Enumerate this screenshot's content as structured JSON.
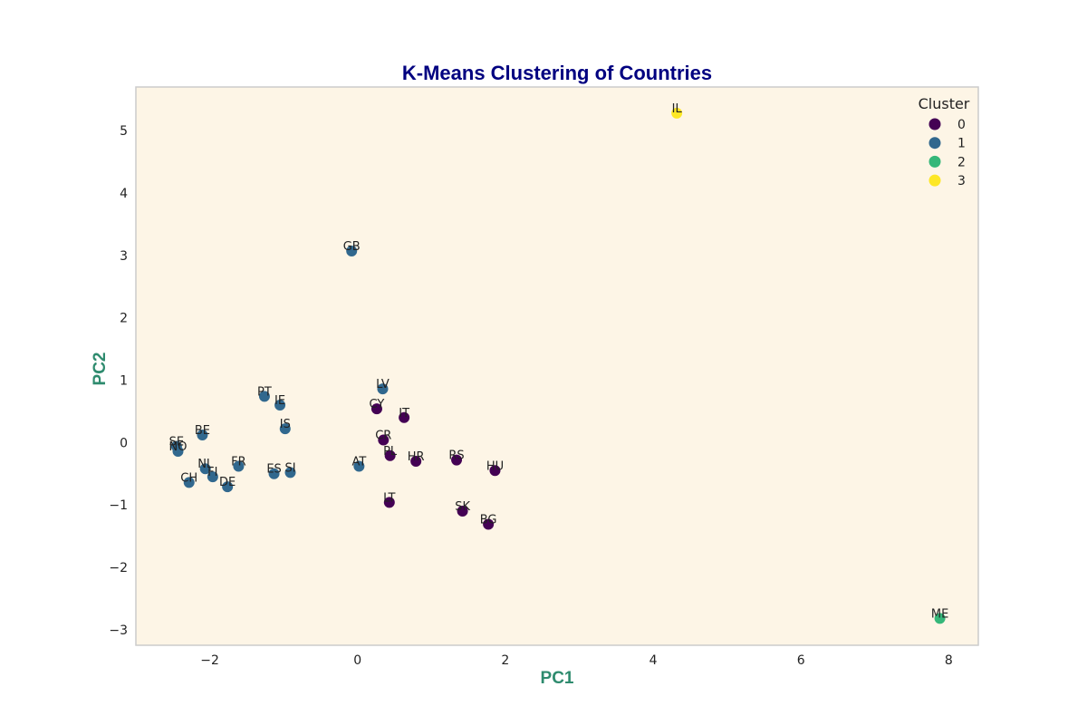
{
  "colors": {
    "plot_bg": "#fdf5e6",
    "frame": "#cccccc",
    "title": "#000080",
    "axis_label": "#2e8b6e",
    "cluster": [
      "#440154",
      "#31688e",
      "#35b779",
      "#fde725"
    ]
  },
  "chart_data": {
    "type": "scatter",
    "title": "K-Means Clustering of Countries",
    "xlabel": "PC1",
    "ylabel": "PC2",
    "xlim": [
      -3.0,
      8.4
    ],
    "ylim": [
      -3.25,
      5.7
    ],
    "xticks": [
      -2,
      0,
      2,
      4,
      6,
      8
    ],
    "yticks": [
      -3,
      -2,
      -1,
      0,
      1,
      2,
      3,
      4,
      5
    ],
    "grid": false,
    "legend": {
      "title": "Cluster",
      "placement": "top-right",
      "entries": [
        "0",
        "1",
        "2",
        "3"
      ]
    },
    "points": [
      {
        "label": "IL",
        "x": 4.32,
        "y": 5.28,
        "cluster": 3
      },
      {
        "label": "ME",
        "x": 7.88,
        "y": -2.82,
        "cluster": 2
      },
      {
        "label": "GB",
        "x": -0.08,
        "y": 3.07,
        "cluster": 1
      },
      {
        "label": "PT",
        "x": -1.26,
        "y": 0.74,
        "cluster": 1
      },
      {
        "label": "IE",
        "x": -1.05,
        "y": 0.6,
        "cluster": 1
      },
      {
        "label": "IS",
        "x": -0.98,
        "y": 0.22,
        "cluster": 1
      },
      {
        "label": "LV",
        "x": 0.34,
        "y": 0.86,
        "cluster": 1
      },
      {
        "label": "BE",
        "x": -2.1,
        "y": 0.12,
        "cluster": 1
      },
      {
        "label": "SE",
        "x": -2.45,
        "y": -0.06,
        "cluster": 1
      },
      {
        "label": "NO",
        "x": -2.43,
        "y": -0.14,
        "cluster": 1
      },
      {
        "label": "NL",
        "x": -2.06,
        "y": -0.42,
        "cluster": 1
      },
      {
        "label": "FI",
        "x": -1.96,
        "y": -0.55,
        "cluster": 1
      },
      {
        "label": "CH",
        "x": -2.28,
        "y": -0.64,
        "cluster": 1
      },
      {
        "label": "DE",
        "x": -1.76,
        "y": -0.71,
        "cluster": 1
      },
      {
        "label": "FR",
        "x": -1.61,
        "y": -0.38,
        "cluster": 1
      },
      {
        "label": "ES",
        "x": -1.13,
        "y": -0.5,
        "cluster": 1
      },
      {
        "label": "SI",
        "x": -0.91,
        "y": -0.48,
        "cluster": 1
      },
      {
        "label": "AT",
        "x": 0.02,
        "y": -0.38,
        "cluster": 1
      },
      {
        "label": "CY",
        "x": 0.26,
        "y": 0.54,
        "cluster": 0
      },
      {
        "label": "IT",
        "x": 0.63,
        "y": 0.4,
        "cluster": 0
      },
      {
        "label": "CR",
        "x": 0.35,
        "y": 0.04,
        "cluster": 0
      },
      {
        "label": "PL",
        "x": 0.44,
        "y": -0.21,
        "cluster": 0
      },
      {
        "label": "HR",
        "x": 0.79,
        "y": -0.3,
        "cluster": 0
      },
      {
        "label": "RS",
        "x": 1.34,
        "y": -0.28,
        "cluster": 0
      },
      {
        "label": "HU",
        "x": 1.86,
        "y": -0.45,
        "cluster": 0
      },
      {
        "label": "LT",
        "x": 0.43,
        "y": -0.96,
        "cluster": 0
      },
      {
        "label": "SK",
        "x": 1.42,
        "y": -1.1,
        "cluster": 0
      },
      {
        "label": "BG",
        "x": 1.77,
        "y": -1.31,
        "cluster": 0
      }
    ]
  }
}
